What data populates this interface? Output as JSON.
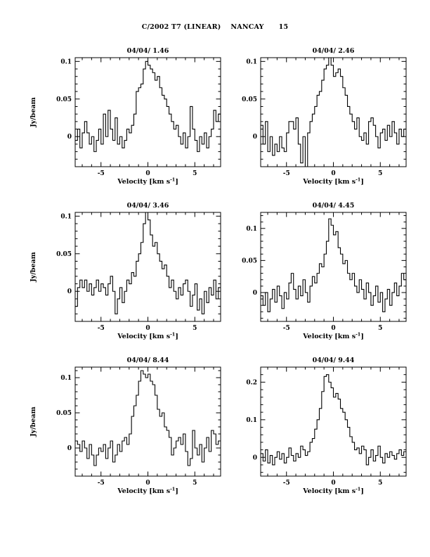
{
  "page": {
    "header": "C/2002 T7 (LINEAR)    NANCAY      15"
  },
  "axis": {
    "xlabel_main": "Velocity [km s",
    "xlabel_sup": "-1",
    "xlabel_close": "]",
    "ylabel": "Jy/beam",
    "xticks": [
      -5,
      0,
      5
    ],
    "xtick_labels": [
      "-5",
      "0",
      "5"
    ],
    "x_minor_step": 1,
    "xlim": [
      -7.75,
      7.75
    ]
  },
  "chart_data": [
    {
      "type": "line",
      "title": "04/04/ 1.46",
      "xlabel": "Velocity [km s-1]",
      "ylabel": "Jy/beam",
      "xlim": [
        -7.75,
        7.75
      ],
      "ylim": [
        -0.04,
        0.105
      ],
      "yticks": [
        0,
        0.05,
        0.1
      ],
      "ytick_labels": [
        "0",
        "0.05",
        "0.1"
      ],
      "y_minor_step": 0.01,
      "x_start": -7.625,
      "x_step": 0.25,
      "values": [
        -0.005,
        0.01,
        -0.015,
        0.005,
        0.02,
        0.005,
        -0.01,
        0,
        -0.02,
        -0.005,
        0.01,
        -0.01,
        0.03,
        0,
        0.035,
        0.01,
        -0.005,
        0.025,
        -0.01,
        0,
        -0.015,
        -0.005,
        0.01,
        0.005,
        0.015,
        0.03,
        0.06,
        0.065,
        0.07,
        0.09,
        0.1,
        0.095,
        0.09,
        0.085,
        0.075,
        0.08,
        0.065,
        0.055,
        0.05,
        0.04,
        0.03,
        0.02,
        0.01,
        0.015,
        0,
        -0.01,
        0.005,
        -0.015,
        0,
        0.04,
        0.01,
        -0.005,
        -0.02,
        0,
        -0.01,
        0.005,
        -0.015,
        0,
        0.01,
        0.035,
        0.02,
        0.03
      ]
    },
    {
      "type": "line",
      "title": "04/04/ 2.46",
      "xlabel": "Velocity [km s-1]",
      "ylabel": "Jy/beam",
      "xlim": [
        -7.75,
        7.75
      ],
      "ylim": [
        -0.04,
        0.105
      ],
      "yticks": [
        0,
        0.05,
        0.1
      ],
      "ytick_labels": [
        "0",
        "0.05",
        "0.1"
      ],
      "y_minor_step": 0.01,
      "x_start": -7.625,
      "x_step": 0.25,
      "values": [
        0.015,
        -0.01,
        0.02,
        -0.02,
        0,
        -0.025,
        -0.01,
        -0.02,
        0,
        -0.015,
        -0.02,
        0.005,
        0.02,
        0.02,
        0.01,
        0.025,
        -0.01,
        -0.035,
        0,
        -0.04,
        0.005,
        0.02,
        0.03,
        0.04,
        0.055,
        0.06,
        0.075,
        0.09,
        0.095,
        0.105,
        0.095,
        0.08,
        0.085,
        0.09,
        0.08,
        0.065,
        0.055,
        0.04,
        0.03,
        0.02,
        0.01,
        0.025,
        0,
        -0.005,
        0.005,
        -0.01,
        0.02,
        0.025,
        0.015,
        0,
        -0.015,
        0.005,
        0.01,
        -0.005,
        0.015,
        0,
        0.02,
        0.005,
        -0.01,
        0.01,
        0,
        0.01
      ]
    },
    {
      "type": "line",
      "title": "04/04/ 3.46",
      "xlabel": "Velocity [km s-1]",
      "ylabel": "Jy/beam",
      "xlim": [
        -7.75,
        7.75
      ],
      "ylim": [
        -0.04,
        0.105
      ],
      "yticks": [
        0,
        0.05,
        0.1
      ],
      "ytick_labels": [
        "0",
        "0.05",
        "0.1"
      ],
      "y_minor_step": 0.01,
      "x_start": -7.625,
      "x_step": 0.25,
      "values": [
        -0.02,
        0.005,
        0.015,
        0.005,
        0.015,
        0,
        0.01,
        -0.005,
        0.005,
        0.015,
        0,
        0.01,
        0.005,
        -0.005,
        0.01,
        0.02,
        0,
        -0.03,
        -0.01,
        0.005,
        -0.015,
        0,
        0.015,
        0.01,
        0.025,
        0.02,
        0.04,
        0.05,
        0.065,
        0.09,
        0.105,
        0.095,
        0.075,
        0.06,
        0.065,
        0.05,
        0.04,
        0.03,
        0.035,
        0.02,
        0.005,
        0.015,
        0,
        -0.01,
        0.005,
        -0.005,
        0.01,
        0.015,
        0,
        -0.02,
        -0.005,
        0.01,
        -0.025,
        -0.01,
        -0.03,
        0,
        -0.015,
        0.005,
        -0.005,
        0.015,
        -0.01,
        0.005
      ]
    },
    {
      "type": "line",
      "title": "04/04/ 4.45",
      "xlabel": "Velocity [km s-1]",
      "ylabel": "Jy/beam",
      "xlim": [
        -7.75,
        7.75
      ],
      "ylim": [
        -0.045,
        0.125
      ],
      "yticks": [
        0,
        0.05,
        0.1
      ],
      "ytick_labels": [
        "0",
        "0.05",
        "0.1"
      ],
      "y_minor_step": 0.01,
      "x_start": -7.625,
      "x_step": 0.25,
      "values": [
        -0.005,
        -0.02,
        0,
        -0.03,
        -0.01,
        0.005,
        -0.015,
        0.01,
        -0.005,
        -0.025,
        0,
        -0.01,
        0.015,
        0.03,
        0.005,
        -0.01,
        0.01,
        -0.005,
        0.02,
        0,
        -0.015,
        0.01,
        0.025,
        0.015,
        0.03,
        0.045,
        0.04,
        0.06,
        0.08,
        0.115,
        0.105,
        0.09,
        0.095,
        0.07,
        0.06,
        0.045,
        0.05,
        0.03,
        0.02,
        0.03,
        0.01,
        0,
        0.02,
        0.005,
        -0.01,
        0.015,
        0,
        -0.02,
        -0.005,
        0.01,
        -0.015,
        0,
        -0.03,
        -0.01,
        0.005,
        -0.02,
        0,
        0.015,
        -0.005,
        0.01,
        0.03,
        0.02
      ]
    },
    {
      "type": "line",
      "title": "04/04/ 8.44",
      "xlabel": "Velocity [km s-1]",
      "ylabel": "Jy/beam",
      "xlim": [
        -7.75,
        7.75
      ],
      "ylim": [
        -0.04,
        0.115
      ],
      "yticks": [
        0,
        0.05,
        0.1
      ],
      "ytick_labels": [
        "0",
        "0.05",
        "0.1"
      ],
      "y_minor_step": 0.01,
      "x_start": -7.625,
      "x_step": 0.25,
      "values": [
        0.01,
        0.005,
        -0.005,
        0.01,
        0,
        -0.015,
        0.005,
        -0.01,
        -0.025,
        -0.01,
        0,
        -0.005,
        0.005,
        -0.015,
        0,
        0.01,
        -0.02,
        -0.01,
        0.005,
        -0.005,
        0.01,
        0.015,
        0.005,
        0.02,
        0.045,
        0.06,
        0.075,
        0.095,
        0.11,
        0.105,
        0.1,
        0.105,
        0.095,
        0.09,
        0.075,
        0.055,
        0.045,
        0.05,
        0.03,
        0.025,
        0.015,
        -0.01,
        0,
        0.01,
        0.015,
        0.005,
        0.02,
        -0.005,
        -0.025,
        -0.015,
        0.025,
        0,
        -0.01,
        0.005,
        -0.02,
        0,
        0.015,
        -0.005,
        0.025,
        0.02,
        0.005,
        0.01
      ]
    },
    {
      "type": "line",
      "title": "04/04/ 9.44",
      "xlabel": "Velocity [km s-1]",
      "ylabel": "Jy/beam",
      "xlim": [
        -7.75,
        7.75
      ],
      "ylim": [
        -0.05,
        0.24
      ],
      "yticks": [
        0,
        0.1,
        0.2
      ],
      "ytick_labels": [
        "0",
        "0.1",
        "0.2"
      ],
      "y_minor_step": 0.02,
      "x_start": -7.625,
      "x_step": 0.25,
      "values": [
        0.01,
        -0.01,
        0.02,
        -0.015,
        0.005,
        -0.02,
        0,
        0.015,
        -0.005,
        0.01,
        -0.015,
        0,
        0.025,
        0.005,
        -0.01,
        0.01,
        0,
        0.03,
        0.02,
        0.005,
        0.015,
        0.04,
        0.05,
        0.075,
        0.1,
        0.13,
        0.175,
        0.215,
        0.22,
        0.2,
        0.185,
        0.16,
        0.17,
        0.155,
        0.13,
        0.12,
        0.1,
        0.08,
        0.055,
        0.04,
        0.02,
        0.025,
        0.01,
        0.03,
        0.02,
        -0.02,
        0,
        0.02,
        -0.01,
        0.005,
        0.03,
        0,
        -0.015,
        0.01,
        0,
        0.015,
        0.005,
        -0.005,
        0.01,
        0.02,
        0.005,
        0.015
      ]
    }
  ]
}
